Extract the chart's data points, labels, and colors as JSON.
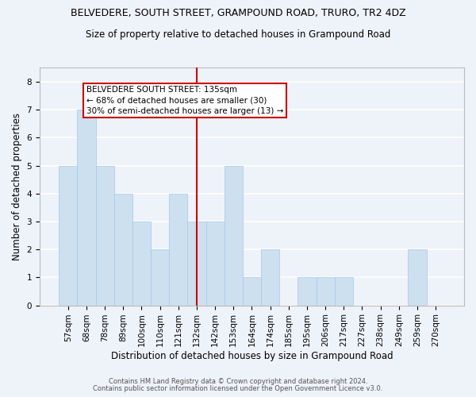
{
  "title1": "BELVEDERE, SOUTH STREET, GRAMPOUND ROAD, TRURO, TR2 4DZ",
  "title2": "Size of property relative to detached houses in Grampound Road",
  "xlabel": "Distribution of detached houses by size in Grampound Road",
  "ylabel": "Number of detached properties",
  "footer1": "Contains HM Land Registry data © Crown copyright and database right 2024.",
  "footer2": "Contains public sector information licensed under the Open Government Licence v3.0.",
  "categories": [
    "57sqm",
    "68sqm",
    "78sqm",
    "89sqm",
    "100sqm",
    "110sqm",
    "121sqm",
    "132sqm",
    "142sqm",
    "153sqm",
    "164sqm",
    "174sqm",
    "185sqm",
    "195sqm",
    "206sqm",
    "217sqm",
    "227sqm",
    "238sqm",
    "249sqm",
    "259sqm",
    "270sqm"
  ],
  "values": [
    5,
    7,
    5,
    4,
    3,
    2,
    4,
    3,
    3,
    5,
    1,
    2,
    0,
    1,
    1,
    1,
    0,
    0,
    0,
    2,
    0
  ],
  "bar_color": "#cce0f0",
  "bar_edge_color": "#a8c8e8",
  "reference_line_index": 7,
  "reference_line_color": "#cc0000",
  "annotation_text": "BELVEDERE SOUTH STREET: 135sqm\n← 68% of detached houses are smaller (30)\n30% of semi-detached houses are larger (13) →",
  "annotation_box_color": "#cc0000",
  "ylim": [
    0,
    8.5
  ],
  "yticks": [
    0,
    1,
    2,
    3,
    4,
    5,
    6,
    7,
    8
  ],
  "background_color": "#eef2f9",
  "grid_color": "#ffffff",
  "title_fontsize": 9,
  "subtitle_fontsize": 8.5,
  "label_fontsize": 8.5,
  "tick_fontsize": 7.5,
  "annotation_fontsize": 7.5
}
